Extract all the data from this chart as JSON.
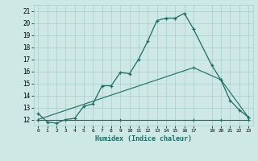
{
  "xlabel": "Humidex (Indice chaleur)",
  "ylabel": "",
  "bg_color": "#cde8e5",
  "grid_color": "#a8cdca",
  "line_color": "#1e6b65",
  "xlim": [
    -0.5,
    23.5
  ],
  "ylim": [
    11.5,
    21.5
  ],
  "xticks": [
    0,
    1,
    2,
    3,
    4,
    5,
    6,
    7,
    8,
    9,
    10,
    11,
    12,
    13,
    14,
    15,
    16,
    17,
    19,
    20,
    21,
    22,
    23
  ],
  "yticks": [
    12,
    13,
    14,
    15,
    16,
    17,
    18,
    19,
    20,
    21
  ],
  "curve1_x": [
    0,
    1,
    2,
    3,
    4,
    5,
    6,
    7,
    8,
    9,
    10,
    11,
    12,
    13,
    14,
    15,
    16,
    17,
    19,
    20,
    21,
    22,
    23
  ],
  "curve1_y": [
    12.5,
    11.8,
    11.7,
    12.0,
    12.1,
    13.1,
    13.3,
    14.8,
    14.8,
    15.9,
    15.8,
    17.0,
    18.5,
    20.2,
    20.4,
    20.4,
    20.8,
    19.5,
    16.5,
    15.3,
    13.6,
    12.8,
    12.2
  ],
  "curve2_x": [
    0,
    17,
    20,
    23
  ],
  "curve2_y": [
    12.0,
    16.3,
    15.3,
    12.2
  ],
  "curve3_x": [
    0,
    9,
    17,
    20,
    23
  ],
  "curve3_y": [
    12.0,
    12.0,
    12.0,
    12.0,
    12.0
  ]
}
